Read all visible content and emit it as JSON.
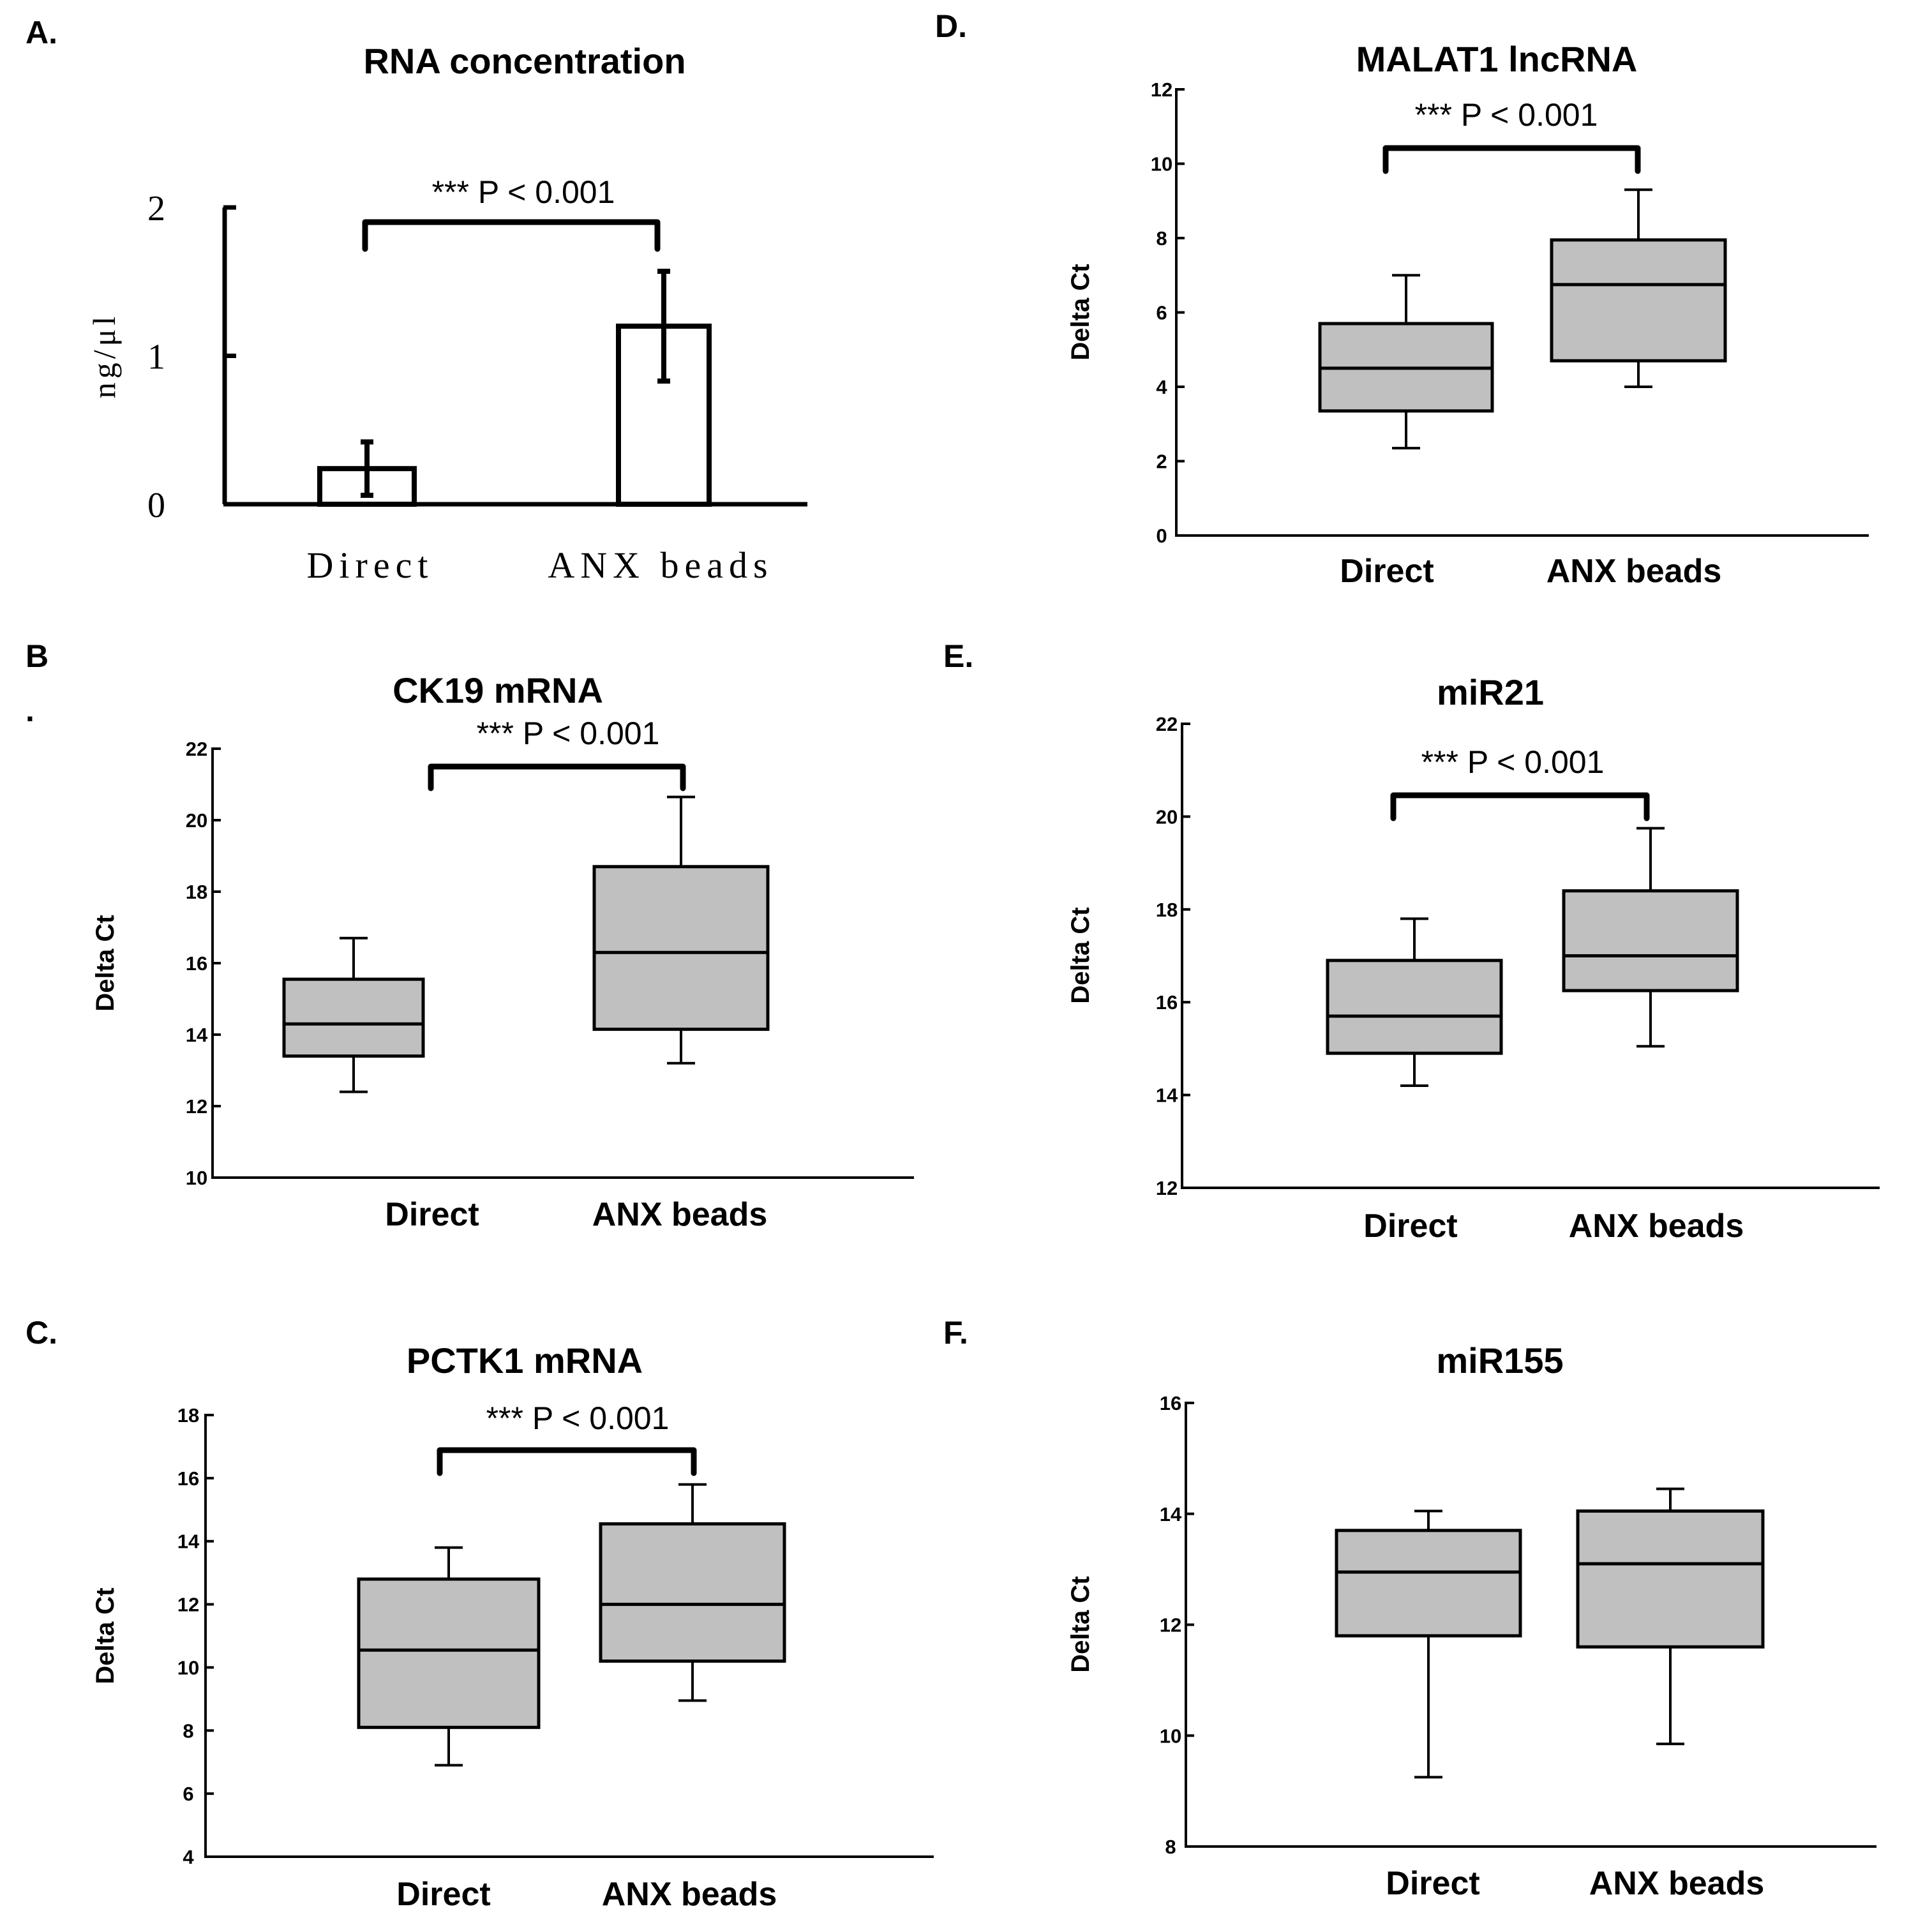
{
  "figure": {
    "panels": [
      "A.",
      "B",
      "C.",
      "D.",
      "E.",
      "F."
    ],
    "stray_mark": "."
  },
  "chart_data": [
    {
      "id": "A",
      "type": "bar",
      "title": "RNA concentration",
      "ylabel": "ng/μl",
      "xlabel": "",
      "categories": [
        "Direct",
        "ANX beads"
      ],
      "values": [
        0.24,
        1.2
      ],
      "errors": [
        [
          0.06,
          0.42
        ],
        [
          0.83,
          1.57
        ]
      ],
      "ylim": [
        0,
        2
      ],
      "yticks": [
        0,
        1,
        2
      ],
      "significance": "*** P < 0.001",
      "grid": false
    },
    {
      "id": "B",
      "type": "box",
      "title": "CK19 mRNA",
      "ylabel": "Delta Ct",
      "xlabel": "",
      "categories": [
        "Direct",
        "ANX beads"
      ],
      "boxes": [
        {
          "min": 12.4,
          "q1": 13.4,
          "median": 14.3,
          "q3": 15.55,
          "max": 16.7
        },
        {
          "min": 13.2,
          "q1": 14.15,
          "median": 16.3,
          "q3": 18.7,
          "max": 20.65
        }
      ],
      "ylim": [
        10,
        22
      ],
      "yticks": [
        10,
        12,
        14,
        16,
        18,
        20,
        22
      ],
      "significance": "*** P < 0.001",
      "grid": false
    },
    {
      "id": "C",
      "type": "box",
      "title": "PCTK1 mRNA",
      "ylabel": "Delta Ct",
      "xlabel": "",
      "categories": [
        "Direct",
        "ANX beads"
      ],
      "boxes": [
        {
          "min": 6.9,
          "q1": 8.1,
          "median": 10.55,
          "q3": 12.8,
          "max": 13.8
        },
        {
          "min": 8.95,
          "q1": 10.2,
          "median": 12.0,
          "q3": 14.55,
          "max": 15.8
        }
      ],
      "ylim": [
        4,
        18
      ],
      "yticks": [
        4,
        6,
        8,
        10,
        12,
        14,
        16,
        18
      ],
      "significance": "*** P < 0.001",
      "grid": false
    },
    {
      "id": "D",
      "type": "box",
      "title": "MALAT1 lncRNA",
      "ylabel": "Delta Ct",
      "xlabel": "",
      "categories": [
        "Direct",
        "ANX beads"
      ],
      "boxes": [
        {
          "min": 2.35,
          "q1": 3.35,
          "median": 4.5,
          "q3": 5.7,
          "max": 7.0
        },
        {
          "min": 4.0,
          "q1": 4.7,
          "median": 6.75,
          "q3": 7.95,
          "max": 9.3
        }
      ],
      "ylim": [
        0,
        12
      ],
      "yticks": [
        0,
        2,
        4,
        6,
        8,
        10,
        12
      ],
      "significance": "*** P < 0.001",
      "grid": false
    },
    {
      "id": "E",
      "type": "box",
      "title": "miR21",
      "ylabel": "Delta Ct",
      "xlabel": "",
      "categories": [
        "Direct",
        "ANX beads"
      ],
      "boxes": [
        {
          "min": 14.2,
          "q1": 14.9,
          "median": 15.7,
          "q3": 16.9,
          "max": 17.8
        },
        {
          "min": 15.05,
          "q1": 16.25,
          "median": 17.0,
          "q3": 18.4,
          "max": 19.75
        }
      ],
      "ylim": [
        12,
        22
      ],
      "yticks": [
        12,
        14,
        16,
        18,
        20,
        22
      ],
      "significance": "*** P < 0.001",
      "grid": false
    },
    {
      "id": "F",
      "type": "box",
      "title": "miR155",
      "ylabel": "Delta Ct",
      "xlabel": "",
      "categories": [
        "Direct",
        "ANX beads"
      ],
      "boxes": [
        {
          "min": 9.25,
          "q1": 11.8,
          "median": 12.95,
          "q3": 13.7,
          "max": 14.05
        },
        {
          "min": 9.85,
          "q1": 11.6,
          "median": 13.1,
          "q3": 14.05,
          "max": 14.45
        }
      ],
      "ylim": [
        8,
        16
      ],
      "yticks": [
        8,
        10,
        12,
        14,
        16
      ],
      "significance": "",
      "grid": false
    }
  ]
}
